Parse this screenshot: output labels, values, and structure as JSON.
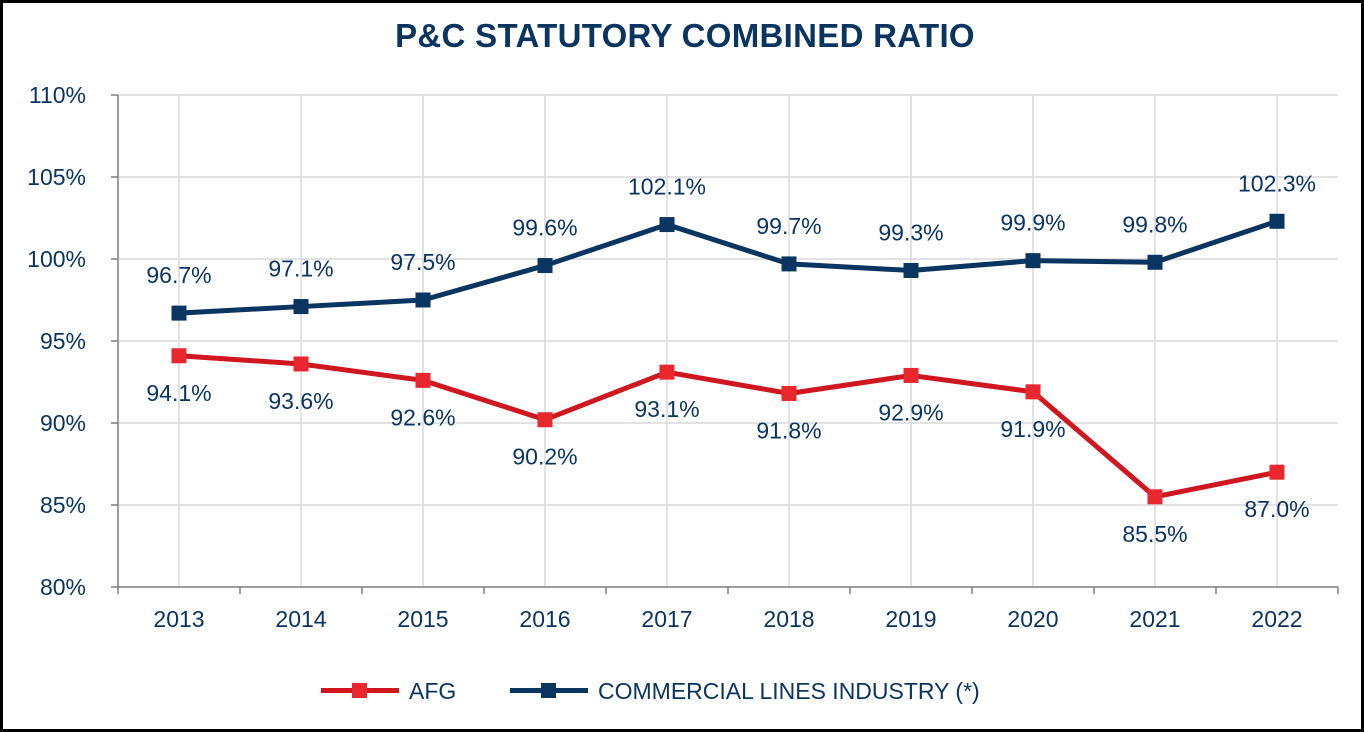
{
  "chart_data": {
    "type": "line",
    "title": "P&C STATUTORY COMBINED RATIO",
    "x": [
      "2013",
      "2014",
      "2015",
      "2016",
      "2017",
      "2018",
      "2019",
      "2020",
      "2021",
      "2022"
    ],
    "ylim": [
      80,
      110
    ],
    "yticks": [
      80,
      85,
      90,
      95,
      100,
      105,
      110
    ],
    "ytick_labels": [
      "80%",
      "85%",
      "90%",
      "95%",
      "100%",
      "105%",
      "110%"
    ],
    "grid": true,
    "legend_position": "bottom",
    "series": [
      {
        "name": "AFG",
        "color": "#d0161e",
        "marker_color": "#e8272f",
        "values": [
          94.1,
          93.6,
          92.6,
          90.2,
          93.1,
          91.8,
          92.9,
          91.9,
          85.5,
          87.0
        ],
        "labels": [
          "94.1%",
          "93.6%",
          "92.6%",
          "90.2%",
          "93.1%",
          "91.8%",
          "92.9%",
          "91.9%",
          "85.5%",
          "87.0%"
        ],
        "label_position": "below"
      },
      {
        "name": "COMMERCIAL LINES INDUSTRY (*)",
        "color": "#0b3561",
        "marker_color": "#0b3561",
        "values": [
          96.7,
          97.1,
          97.5,
          99.6,
          102.1,
          99.7,
          99.3,
          99.9,
          99.8,
          102.3
        ],
        "labels": [
          "96.7%",
          "97.1%",
          "97.5%",
          "99.6%",
          "102.1%",
          "99.7%",
          "99.3%",
          "99.9%",
          "99.8%",
          "102.3%"
        ],
        "label_position": "above"
      }
    ]
  }
}
